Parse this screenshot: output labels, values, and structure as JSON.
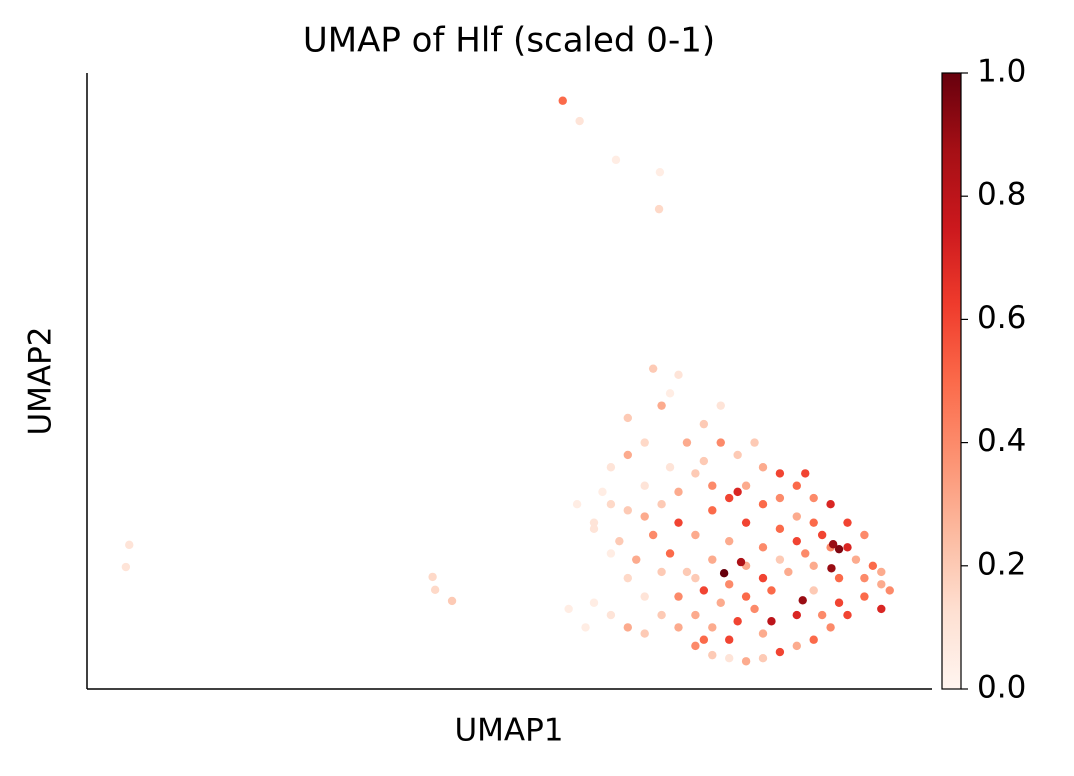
{
  "chart_data": {
    "type": "scatter",
    "title": "UMAP of Hlf (scaled 0-1)",
    "x_label": "UMAP1",
    "y_label": "UMAP2",
    "xlim": [
      0,
      100
    ],
    "ylim": [
      0,
      100
    ],
    "colormap": [
      "#fff5f0",
      "#fee0d2",
      "#fcbba1",
      "#fc9272",
      "#fb6a4a",
      "#ef3b2c",
      "#cb181d",
      "#a50f15",
      "#67000d"
    ],
    "clim": [
      0,
      1
    ],
    "cticks": [
      {
        "value": 0,
        "label": "0.0"
      },
      0.2,
      0.4,
      0.6,
      0.8,
      {
        "value": 1,
        "label": "1.0"
      }
    ],
    "points": [
      [
        56.3,
        95.5,
        0.5
      ],
      [
        58.3,
        92.2,
        0.1
      ],
      [
        62.6,
        85.9,
        0.05
      ],
      [
        67.8,
        83.9,
        0.05
      ],
      [
        67.7,
        77.9,
        0.15
      ],
      [
        5.0,
        23.4,
        0.1
      ],
      [
        4.6,
        19.8,
        0.1
      ],
      [
        40.9,
        18.2,
        0.15
      ],
      [
        41.2,
        16.1,
        0.15
      ],
      [
        43.2,
        14.3,
        0.2
      ],
      [
        58,
        30,
        0.05
      ],
      [
        60,
        27,
        0.1
      ],
      [
        61,
        32,
        0.05
      ],
      [
        62,
        36,
        0.1
      ],
      [
        64,
        38,
        0.3
      ],
      [
        66,
        40,
        0.15
      ],
      [
        67,
        52,
        0.2
      ],
      [
        70,
        51,
        0.1
      ],
      [
        68,
        46,
        0.3
      ],
      [
        73,
        43,
        0.2
      ],
      [
        75,
        40,
        0.4
      ],
      [
        77,
        38,
        0.2
      ],
      [
        80,
        36,
        0.3
      ],
      [
        82,
        35,
        0.6
      ],
      [
        84,
        33,
        0.5
      ],
      [
        86,
        31,
        0.4
      ],
      [
        88,
        30,
        0.7
      ],
      [
        90,
        27,
        0.6
      ],
      [
        92,
        25,
        0.4
      ],
      [
        93,
        20,
        0.5
      ],
      [
        94,
        17,
        0.3
      ],
      [
        95,
        16,
        0.4
      ],
      [
        94,
        13,
        0.7
      ],
      [
        92,
        15,
        0.5
      ],
      [
        90,
        12,
        0.6
      ],
      [
        88,
        10,
        0.4
      ],
      [
        86,
        8,
        0.5
      ],
      [
        84,
        7,
        0.3
      ],
      [
        82,
        6,
        0.6
      ],
      [
        80,
        5,
        0.2
      ],
      [
        78,
        4.5,
        0.3
      ],
      [
        76,
        5,
        0.1
      ],
      [
        74,
        5.5,
        0.2
      ],
      [
        72,
        7,
        0.4
      ],
      [
        70,
        10,
        0.3
      ],
      [
        68,
        12,
        0.2
      ],
      [
        66,
        15,
        0.1
      ],
      [
        64,
        18,
        0.15
      ],
      [
        62,
        22,
        0.05
      ],
      [
        60,
        26,
        0.1
      ],
      [
        63,
        24,
        0.2
      ],
      [
        65,
        21,
        0.3
      ],
      [
        67,
        25,
        0.4
      ],
      [
        69,
        22,
        0.5
      ],
      [
        71,
        19,
        0.2
      ],
      [
        73,
        16,
        0.6
      ],
      [
        75,
        14,
        0.3
      ],
      [
        77,
        11,
        0.6
      ],
      [
        79,
        13,
        0.4
      ],
      [
        81,
        16,
        0.5
      ],
      [
        83,
        19,
        0.3
      ],
      [
        85,
        22,
        0.4
      ],
      [
        87,
        25,
        0.6
      ],
      [
        89,
        18,
        0.5
      ],
      [
        91,
        21,
        0.3
      ],
      [
        90,
        23,
        0.7
      ],
      [
        86,
        16,
        0.2
      ],
      [
        84,
        12,
        0.7
      ],
      [
        80,
        9,
        0.3
      ],
      [
        76,
        8,
        0.6
      ],
      [
        72,
        12,
        0.3
      ],
      [
        70,
        15,
        0.4
      ],
      [
        68,
        19,
        0.2
      ],
      [
        66,
        28,
        0.3
      ],
      [
        68,
        30,
        0.2
      ],
      [
        70,
        27,
        0.6
      ],
      [
        72,
        25,
        0.3
      ],
      [
        74,
        29,
        0.5
      ],
      [
        76,
        24,
        0.3
      ],
      [
        78,
        27,
        0.6
      ],
      [
        80,
        23,
        0.4
      ],
      [
        82,
        26,
        0.5
      ],
      [
        84,
        28,
        0.3
      ],
      [
        86,
        27,
        0.5
      ],
      [
        88,
        23,
        0.4
      ],
      [
        78,
        20,
        0.3
      ],
      [
        80,
        18,
        0.6
      ],
      [
        82,
        21,
        0.2
      ],
      [
        76,
        17,
        0.4
      ],
      [
        74,
        21,
        0.3
      ],
      [
        72,
        18,
        0.2
      ],
      [
        70,
        32,
        0.3
      ],
      [
        72,
        35,
        0.2
      ],
      [
        74,
        33,
        0.4
      ],
      [
        76,
        31,
        0.6
      ],
      [
        78,
        33,
        0.3
      ],
      [
        80,
        30,
        0.5
      ],
      [
        82,
        31,
        0.4
      ],
      [
        84,
        24,
        0.6
      ],
      [
        86,
        20,
        0.3
      ],
      [
        78,
        15,
        0.5
      ],
      [
        74,
        10,
        0.3
      ],
      [
        66,
        9,
        0.2
      ],
      [
        64,
        10,
        0.3
      ],
      [
        62,
        12,
        0.1
      ],
      [
        60,
        14,
        0.05
      ],
      [
        57,
        13,
        0.05
      ],
      [
        59,
        10,
        0.05
      ],
      [
        66,
        33,
        0.1
      ],
      [
        64,
        29,
        0.2
      ],
      [
        73,
        8,
        0.5
      ],
      [
        81,
        11,
        0.8
      ],
      [
        87,
        12,
        0.4
      ],
      [
        89,
        14,
        0.6
      ],
      [
        92,
        18,
        0.4
      ],
      [
        94,
        19,
        0.3
      ],
      [
        77,
        32,
        0.7
      ],
      [
        85,
        35,
        0.6
      ],
      [
        73,
        37,
        0.2
      ],
      [
        69,
        36,
        0.1
      ],
      [
        62,
        30,
        0.15
      ],
      [
        71,
        40,
        0.3
      ],
      [
        79,
        40,
        0.2
      ],
      [
        75,
        46,
        0.1
      ],
      [
        64,
        44,
        0.2
      ],
      [
        69,
        48,
        0.05
      ],
      [
        75.4,
        18.8,
        1.0
      ],
      [
        89.0,
        22.7,
        0.95
      ],
      [
        88.1,
        19.6,
        0.9
      ],
      [
        84.7,
        14.4,
        0.9
      ],
      [
        77.4,
        20.6,
        0.85
      ],
      [
        88.3,
        23.5,
        0.9
      ]
    ]
  }
}
